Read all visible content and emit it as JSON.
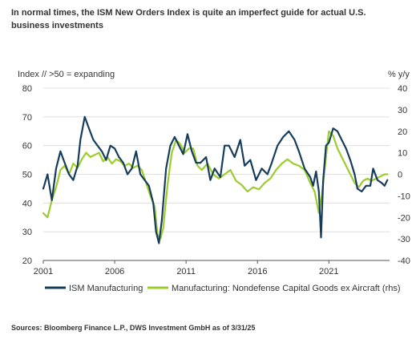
{
  "title": "In normal times, the ISM New Orders Index is quite an imperfect guide for actual U.S. business investments",
  "source": "Sources: Bloomberg Finance L.P., DWS Investment GmbH as of 3/31/25",
  "colors": {
    "ism": "#173d5c",
    "capgoods": "#9ccc2e",
    "grid": "#d9d9d9",
    "axis": "#555555"
  },
  "chart_data": {
    "type": "line",
    "ylabel_left": "Index // >50 = expanding",
    "ylabel_right": "% y/y",
    "x_ticks": [
      "2001",
      "2006",
      "2011",
      "2016",
      "2021"
    ],
    "x_tick_values": [
      2001,
      2006,
      2011,
      2016,
      2021
    ],
    "xlim": [
      2001,
      2025.25
    ],
    "ylim_left": [
      20,
      80
    ],
    "ylim_right": [
      -40,
      40
    ],
    "y_ticks_left": [
      "80",
      "70",
      "60",
      "50",
      "40",
      "30",
      "20"
    ],
    "y_ticks_right": [
      "40",
      "30",
      "20",
      "10",
      "0",
      "-10",
      "-20",
      "-30",
      "-40"
    ],
    "grid": "horizontal at left-axis ticks",
    "legend_position": "bottom",
    "series": [
      {
        "name": "ISM Manufacturing",
        "axis": "left",
        "x": [
          2001.0,
          2001.3,
          2001.6,
          2001.9,
          2002.2,
          2002.5,
          2002.8,
          2003.1,
          2003.4,
          2003.6,
          2003.9,
          2004.2,
          2004.5,
          2004.8,
          2005.1,
          2005.4,
          2005.7,
          2006.0,
          2006.3,
          2006.6,
          2006.9,
          2007.2,
          2007.5,
          2007.8,
          2008.1,
          2008.4,
          2008.7,
          2008.9,
          2009.1,
          2009.3,
          2009.6,
          2009.9,
          2010.2,
          2010.5,
          2010.8,
          2011.1,
          2011.4,
          2011.7,
          2012.0,
          2012.4,
          2012.7,
          2013.0,
          2013.4,
          2013.7,
          2014.0,
          2014.4,
          2014.8,
          2015.1,
          2015.5,
          2015.9,
          2016.3,
          2016.7,
          2017.0,
          2017.4,
          2017.8,
          2018.2,
          2018.6,
          2018.9,
          2019.3,
          2019.7,
          2019.9,
          2020.1,
          2020.3,
          2020.45,
          2020.6,
          2020.8,
          2021.0,
          2021.3,
          2021.6,
          2021.9,
          2022.2,
          2022.5,
          2022.8,
          2023.0,
          2023.3,
          2023.6,
          2023.9,
          2024.1,
          2024.4,
          2024.7,
          2024.9,
          2025.1
        ],
        "y": [
          45,
          50,
          41,
          52,
          58,
          54,
          50,
          48,
          53,
          62,
          70,
          66,
          62,
          60,
          58,
          55,
          60,
          59,
          56,
          54,
          50,
          52,
          58,
          50,
          48,
          46,
          40,
          30,
          26,
          34,
          52,
          60,
          63,
          60,
          57,
          64,
          58,
          54,
          54,
          56,
          48,
          52,
          49,
          60,
          60,
          56,
          62,
          53,
          55,
          48,
          52,
          50,
          54,
          60,
          63,
          65,
          62,
          58,
          52,
          49,
          46,
          51,
          44,
          28,
          48,
          60,
          61,
          66,
          65,
          62,
          59,
          55,
          50,
          45,
          44,
          46,
          46,
          52,
          48,
          47,
          46,
          48
        ]
      },
      {
        "name": "Manufacturing: Nondefense Capital Goods ex Aircraft (rhs)",
        "axis": "right",
        "x": [
          2001.0,
          2001.3,
          2001.6,
          2001.9,
          2002.2,
          2002.5,
          2002.8,
          2003.1,
          2003.4,
          2003.7,
          2004.0,
          2004.3,
          2004.6,
          2004.9,
          2005.2,
          2005.5,
          2005.8,
          2006.1,
          2006.4,
          2006.7,
          2007.0,
          2007.3,
          2007.6,
          2007.9,
          2008.2,
          2008.5,
          2008.8,
          2009.0,
          2009.2,
          2009.4,
          2009.7,
          2010.0,
          2010.3,
          2010.6,
          2010.9,
          2011.2,
          2011.5,
          2011.8,
          2012.1,
          2012.5,
          2012.9,
          2013.3,
          2013.7,
          2014.1,
          2014.5,
          2014.9,
          2015.3,
          2015.7,
          2016.1,
          2016.5,
          2016.9,
          2017.3,
          2017.7,
          2018.1,
          2018.5,
          2018.9,
          2019.3,
          2019.7,
          2020.0,
          2020.3,
          2020.5,
          2020.8,
          2021.0,
          2021.3,
          2021.6,
          2021.9,
          2022.2,
          2022.5,
          2022.8,
          2023.1,
          2023.4,
          2023.7,
          2024.0,
          2024.3,
          2024.6,
          2024.9,
          2025.1
        ],
        "y": [
          -18,
          -20,
          -12,
          -6,
          2,
          4,
          0,
          5,
          3,
          7,
          10,
          8,
          9,
          10,
          6,
          8,
          5,
          7,
          6,
          4,
          5,
          3,
          4,
          2,
          -4,
          -10,
          -15,
          -28,
          -30,
          -25,
          -5,
          10,
          16,
          14,
          10,
          12,
          12,
          4,
          2,
          5,
          0,
          -2,
          0,
          2,
          -3,
          -5,
          -8,
          -6,
          -7,
          -4,
          -2,
          2,
          5,
          7,
          5,
          4,
          2,
          -4,
          -8,
          -18,
          -10,
          8,
          20,
          18,
          12,
          8,
          4,
          0,
          -4,
          -6,
          -3,
          -2,
          -3,
          -2,
          -1,
          0,
          0
        ]
      }
    ]
  }
}
